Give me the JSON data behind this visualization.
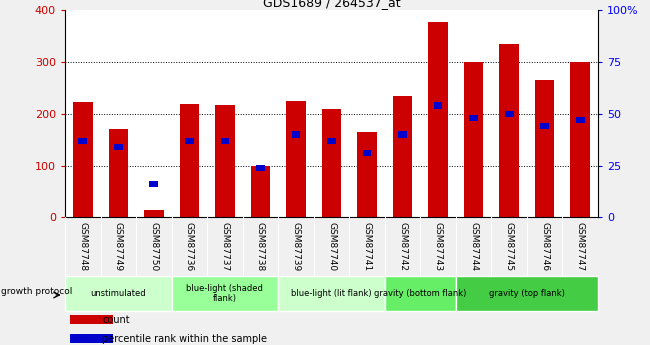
{
  "title": "GDS1689 / 264537_at",
  "samples": [
    "GSM87748",
    "GSM87749",
    "GSM87750",
    "GSM87736",
    "GSM87737",
    "GSM87738",
    "GSM87739",
    "GSM87740",
    "GSM87741",
    "GSM87742",
    "GSM87743",
    "GSM87744",
    "GSM87745",
    "GSM87746",
    "GSM87747"
  ],
  "count_values": [
    222,
    170,
    15,
    220,
    218,
    100,
    225,
    210,
    165,
    235,
    378,
    300,
    335,
    265,
    300
  ],
  "percentile_values": [
    37,
    34,
    16,
    37,
    37,
    24,
    40,
    37,
    31,
    40,
    54,
    48,
    50,
    44,
    47
  ],
  "groups": [
    {
      "label": "unstimulated",
      "span": [
        0,
        3
      ],
      "color": "#ccffcc"
    },
    {
      "label": "blue-light (shaded\nflank)",
      "span": [
        3,
        6
      ],
      "color": "#99ff99"
    },
    {
      "label": "blue-light (lit flank)",
      "span": [
        6,
        9
      ],
      "color": "#ccffcc"
    },
    {
      "label": "gravity (bottom flank)",
      "span": [
        9,
        11
      ],
      "color": "#66ee66"
    },
    {
      "label": "gravity (top flank)",
      "span": [
        11,
        15
      ],
      "color": "#44cc44"
    }
  ],
  "ylim_left": [
    0,
    400
  ],
  "ylim_right": [
    0,
    100
  ],
  "yticks_left": [
    0,
    100,
    200,
    300,
    400
  ],
  "yticks_right": [
    0,
    25,
    50,
    75,
    100
  ],
  "ytick_labels_right": [
    "0",
    "25",
    "50",
    "75",
    "100%"
  ],
  "bar_color_count": "#cc0000",
  "bar_color_pct": "#0000cc",
  "background_color": "#f0f0f0",
  "plot_bg": "#ffffff",
  "xlabel_row_bg": "#d0d0d0"
}
